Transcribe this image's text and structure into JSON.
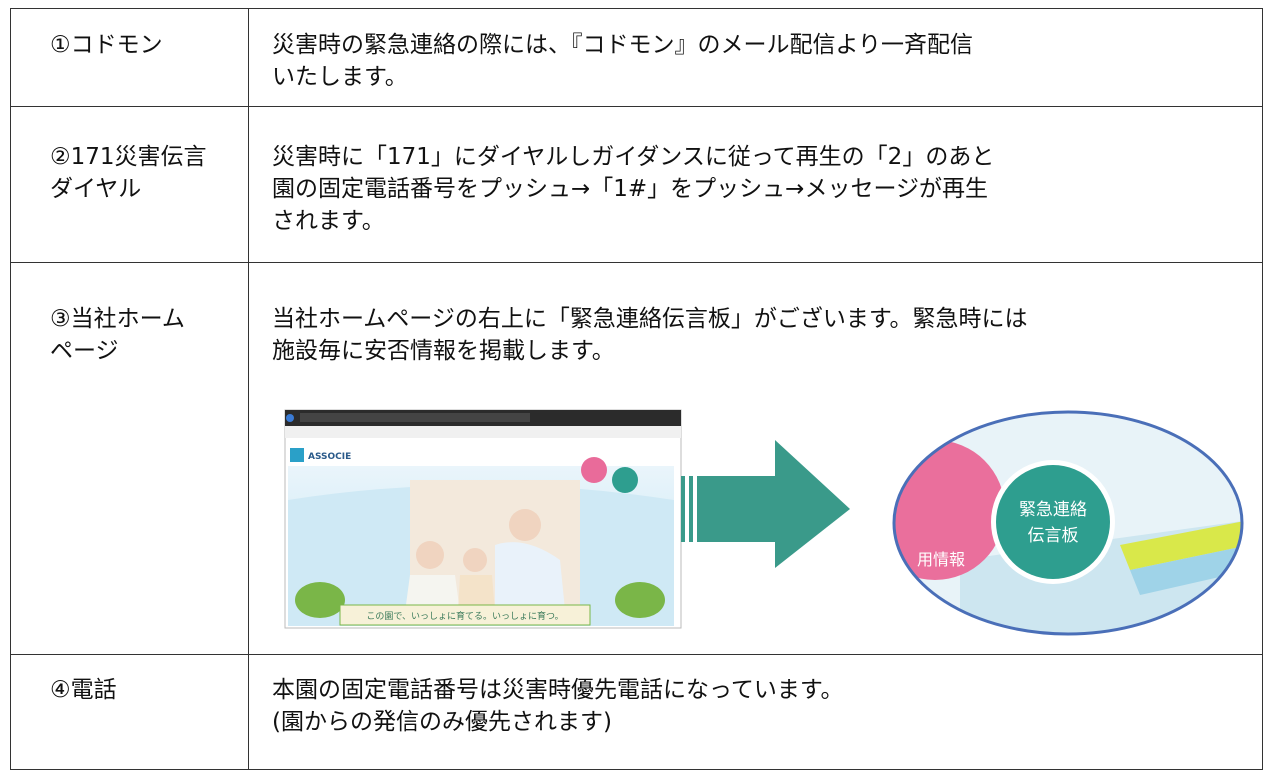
{
  "table": {
    "rows": [
      {
        "label": [
          "①コドモン"
        ],
        "text": [
          "災害時の緊急連絡の際には、『コドモン』のメール配信より一斉配信",
          "いたします。"
        ]
      },
      {
        "label": [
          "②171災害伝言",
          "ダイヤル"
        ],
        "text": [
          "災害時に「171」にダイヤルしガイダンスに従って再生の「2」のあと",
          "園の固定電話番号をプッシュ→「1#」をプッシュ→メッセージが再生",
          "されます。"
        ]
      },
      {
        "label": [
          "③当社ホーム",
          "ページ"
        ],
        "text": [
          "当社ホームページの右上に「緊急連絡伝言板」がございます。緊急時には",
          "施設毎に安否情報を掲載します。"
        ]
      },
      {
        "label": [
          "④電話"
        ],
        "text": [
          "本園の固定電話番号は災害時優先電話になっています。",
          "(園からの発信のみ優先されます)"
        ]
      }
    ]
  },
  "figure": {
    "site_logo": "ASSOCIE",
    "site_tagline": "この園で、いっしょに育てる。いっしょに育つ。",
    "zoom_button": [
      "緊急連絡",
      "伝言板"
    ],
    "zoom_side_label": "用情報"
  }
}
